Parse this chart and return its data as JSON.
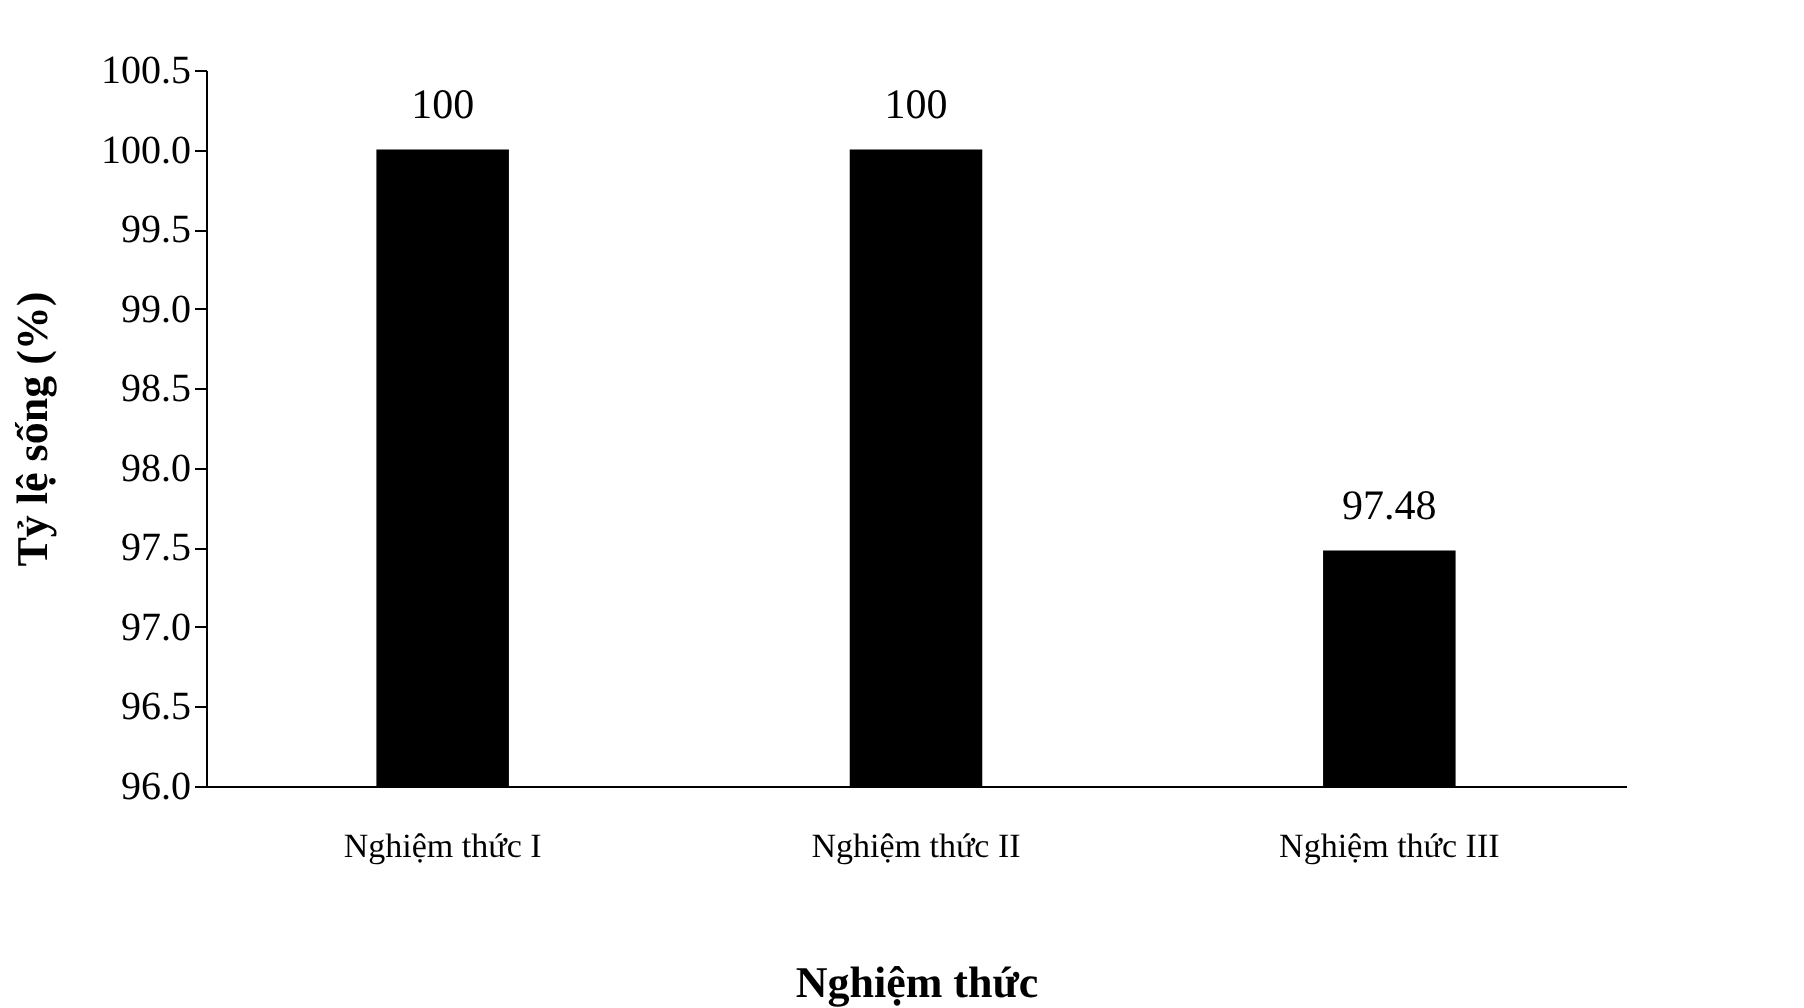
{
  "chart_data": {
    "type": "bar",
    "xlabel": "Nghiệm thức",
    "ylabel": "Tỷ lệ sống (%)",
    "categories": [
      "Nghiệm thức I",
      "Nghiệm thức II",
      "Nghiệm thức III"
    ],
    "values": [
      100,
      100,
      97.48
    ],
    "color": "#000000",
    "ylim": [
      96.0,
      100.5
    ],
    "yticks": [
      {
        "value": 96,
        "label": "96.0"
      },
      {
        "value": 96.5,
        "label": "96.5"
      },
      {
        "value": 97,
        "label": "97.0"
      },
      {
        "value": 97.5,
        "label": "97.5"
      },
      {
        "value": 98,
        "label": "98.0"
      },
      {
        "value": 98.5,
        "label": "98.5"
      },
      {
        "value": 99,
        "label": "99.0"
      },
      {
        "value": 99.5,
        "label": "99.5"
      },
      {
        "value": 100,
        "label": "100.0"
      },
      {
        "value": 100.5,
        "label": "100.5"
      }
    ],
    "data_labels": true,
    "grid": false
  }
}
